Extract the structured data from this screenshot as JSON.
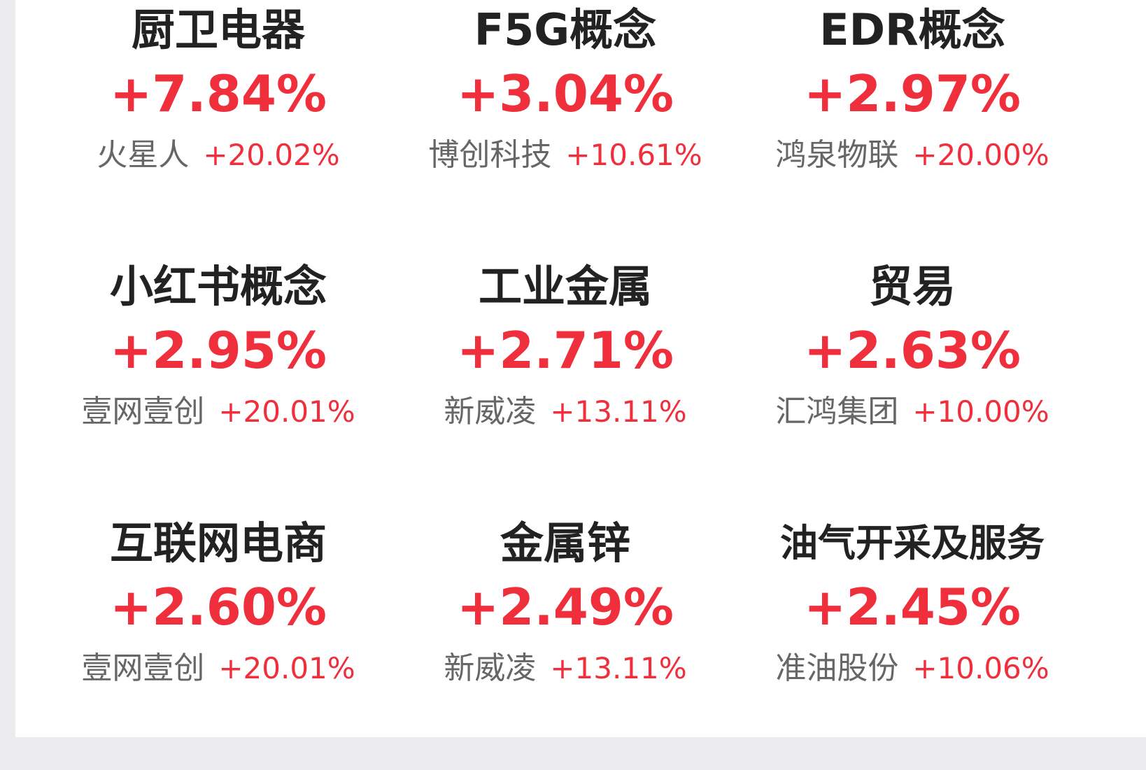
{
  "colors": {
    "rise": "#ef2f3c",
    "title": "#222222",
    "subtext": "#666666",
    "background": "#ececef",
    "card": "#ffffff"
  },
  "sectors": [
    {
      "name": "厨卫电器",
      "change": "+7.84%",
      "leader": "火星人",
      "leader_change": "+20.02%"
    },
    {
      "name": "F5G概念",
      "change": "+3.04%",
      "leader": "博创科技",
      "leader_change": "+10.61%"
    },
    {
      "name": "EDR概念",
      "change": "+2.97%",
      "leader": "鸿泉物联",
      "leader_change": "+20.00%"
    },
    {
      "name": "小红书概念",
      "change": "+2.95%",
      "leader": "壹网壹创",
      "leader_change": "+20.01%"
    },
    {
      "name": "工业金属",
      "change": "+2.71%",
      "leader": "新威凌",
      "leader_change": "+13.11%"
    },
    {
      "name": "贸易",
      "change": "+2.63%",
      "leader": "汇鸿集团",
      "leader_change": "+10.00%"
    },
    {
      "name": "互联网电商",
      "change": "+2.60%",
      "leader": "壹网壹创",
      "leader_change": "+20.01%"
    },
    {
      "name": "金属锌",
      "change": "+2.49%",
      "leader": "新威凌",
      "leader_change": "+13.11%"
    },
    {
      "name": "油气开采及服务",
      "change": "+2.45%",
      "leader": "准油股份",
      "leader_change": "+10.06%"
    }
  ]
}
